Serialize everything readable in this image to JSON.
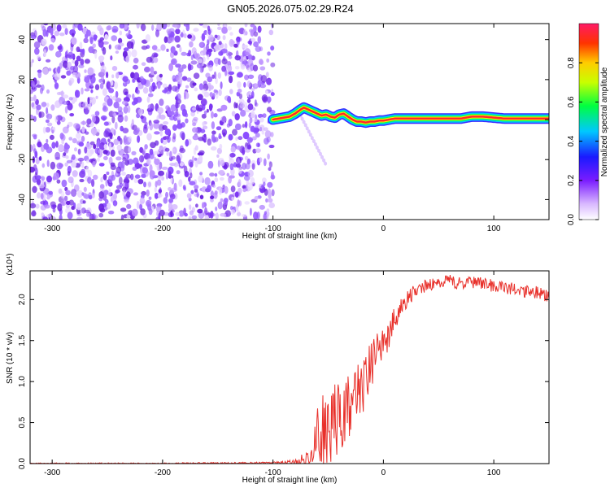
{
  "title": "GN05.2026.075.02.29.R24",
  "chart_data": [
    {
      "type": "heatmap",
      "name": "spectrogram",
      "xlabel": "Height of straight line (km)",
      "ylabel": "Frequency (Hz)",
      "xlim": [
        -320,
        150
      ],
      "ylim": [
        -50,
        48
      ],
      "xticks": [
        -300,
        -200,
        -100,
        0,
        100
      ],
      "yticks": [
        -40,
        -20,
        0,
        20,
        40
      ],
      "noise_region_x": [
        -320,
        -100
      ],
      "signal_track": {
        "x": [
          -100,
          -95,
          -90,
          -85,
          -80,
          -75,
          -72,
          -68,
          -64,
          -60,
          -56,
          -52,
          -48,
          -44,
          -40,
          -36,
          -32,
          -28,
          -24,
          -20,
          -16,
          -12,
          -8,
          -4,
          0,
          5,
          10,
          20,
          40,
          60,
          70,
          80,
          90,
          100,
          110,
          120,
          130,
          140,
          150
        ],
        "freq": [
          0,
          0.5,
          1,
          1.5,
          3,
          5,
          6,
          5,
          4,
          3,
          2,
          2.5,
          1.5,
          1,
          2.5,
          3,
          1.5,
          0,
          -1,
          -1,
          -1.5,
          -1,
          -1,
          -0.5,
          -0.5,
          0,
          0.5,
          0.5,
          0.5,
          0.5,
          0.5,
          1.5,
          1.5,
          1,
          0.5,
          0.5,
          0.5,
          0.5,
          0.5
        ]
      },
      "colorbar": {
        "label": "Normalized spectral amplitude",
        "ticks": [
          "0.0",
          "0.2",
          "0.4",
          "0.6",
          "0.8"
        ],
        "range": [
          0,
          1
        ],
        "colormap": "rainbow"
      },
      "grid": false
    },
    {
      "type": "line",
      "name": "snr",
      "xlabel": "Height of straight line (km)",
      "ylabel": "SNR (10 * v/v)",
      "y_multiplier": "(x10⁴)",
      "xlim": [
        -320,
        150
      ],
      "ylim": [
        0,
        2.35
      ],
      "xticks": [
        -300,
        -200,
        -100,
        0,
        100
      ],
      "yticks": [
        "0.0",
        "0.5",
        "1.0",
        "1.5",
        "2.0"
      ],
      "series": [
        {
          "color": "#e8302a",
          "x": [
            -320,
            -200,
            -100,
            -80,
            -70,
            -62,
            -55,
            -50,
            -45,
            -40,
            -35,
            -30,
            -25,
            -20,
            -15,
            -10,
            -5,
            0,
            5,
            10,
            15,
            20,
            25,
            30,
            40,
            50,
            60,
            70,
            80,
            90,
            100,
            110,
            120,
            130,
            140,
            150
          ],
          "y": [
            0.0,
            0.0,
            0.01,
            0.02,
            0.05,
            0.2,
            0.35,
            0.42,
            0.5,
            0.6,
            0.62,
            0.75,
            0.8,
            0.9,
            1.05,
            1.2,
            1.35,
            1.45,
            1.6,
            1.75,
            1.88,
            1.98,
            2.05,
            2.12,
            2.18,
            2.2,
            2.22,
            2.2,
            2.2,
            2.19,
            2.17,
            2.15,
            2.12,
            2.1,
            2.08,
            2.02
          ],
          "spread": [
            0.01,
            0.01,
            0.01,
            0.03,
            0.1,
            0.4,
            0.55,
            0.5,
            0.5,
            0.45,
            0.45,
            0.4,
            0.4,
            0.35,
            0.35,
            0.3,
            0.25,
            0.25,
            0.2,
            0.15,
            0.12,
            0.1,
            0.1,
            0.08,
            0.08,
            0.08,
            0.08,
            0.08,
            0.08,
            0.08,
            0.08,
            0.08,
            0.08,
            0.08,
            0.08,
            0.08
          ]
        }
      ],
      "grid": false
    }
  ]
}
